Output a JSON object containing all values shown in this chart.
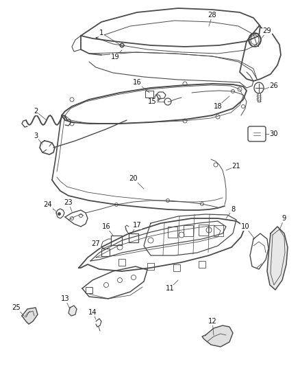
{
  "bg_color": "#ffffff",
  "line_color": "#4a4a4a",
  "lw_main": 1.0,
  "lw_thin": 0.55,
  "label_fs": 7.2,
  "fig_w": 4.38,
  "fig_h": 5.33,
  "dpi": 100
}
